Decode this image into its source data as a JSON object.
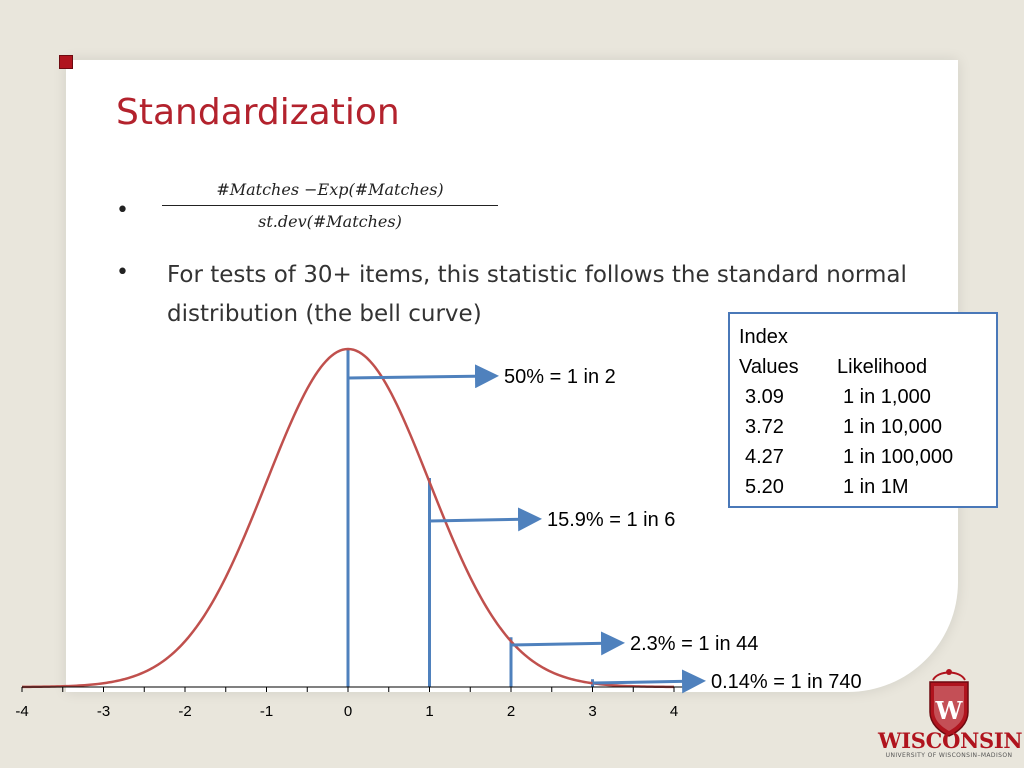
{
  "slide": {
    "title": "Standardization",
    "formula": {
      "numerator": "#Matches −Exp(#Matches)",
      "denominator": "st.dev(#Matches)"
    },
    "bullet2": "For tests of 30+ items, this statistic follows the standard normal distribution (the bell curve)"
  },
  "likelihood_table": {
    "header_line1": "Index",
    "header_col1": "Values",
    "header_col2": "Likelihood",
    "rows": [
      {
        "index": "3.09",
        "likelihood": "1 in 1,000"
      },
      {
        "index": "3.72",
        "likelihood": "1 in 10,000"
      },
      {
        "index": "4.27",
        "likelihood": "1 in 100,000"
      },
      {
        "index": "5.20",
        "likelihood": "1 in 1M"
      }
    ]
  },
  "chart_data": {
    "type": "line",
    "series": [
      {
        "curve": "standard normal density",
        "color": "#c0504d"
      }
    ],
    "x_ticks": [
      "-4",
      "-3",
      "-2",
      "-1",
      "0",
      "1",
      "2",
      "3",
      "4"
    ],
    "xlim": [
      -4,
      4
    ],
    "markers": [
      {
        "x": 0,
        "color": "#4f81bd"
      },
      {
        "x": 1,
        "color": "#4f81bd"
      },
      {
        "x": 2,
        "color": "#4f81bd"
      },
      {
        "x": 3,
        "color": "#4f81bd"
      }
    ],
    "annotations": [
      {
        "x": 0,
        "label": "50% = 1 in 2"
      },
      {
        "x": 1,
        "label": "15.9% = 1 in 6"
      },
      {
        "x": 2,
        "label": "2.3% = 1 in 44"
      },
      {
        "x": 3,
        "label": "0.14% = 1 in 740"
      }
    ],
    "grid": false
  },
  "logo": {
    "name": "WISCONSIN",
    "sub": "UNIVERSITY OF WISCONSIN–MADISON",
    "color": "#b0141e"
  }
}
